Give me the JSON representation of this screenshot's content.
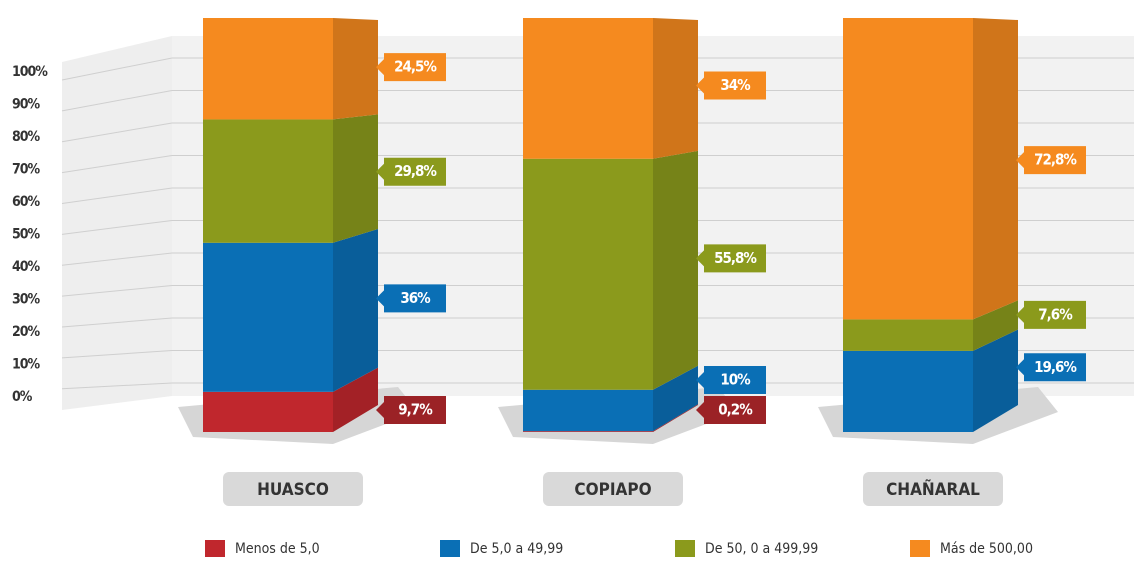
{
  "chart_data": {
    "type": "stacked-bar-3d",
    "categories": [
      "HUASCO",
      "COPIAPO",
      "CHAÑARAL"
    ],
    "series": [
      {
        "name": "Menos de 5,0",
        "color": "#c0272d",
        "values": [
          9.7,
          0.2,
          0
        ],
        "value_labels": [
          "9,7%",
          "0,2%",
          null
        ]
      },
      {
        "name": "De 5,0 a 49,99",
        "color": "#0a6fb5",
        "values": [
          36,
          10,
          19.6
        ],
        "value_labels": [
          "36%",
          "10%",
          "19,6%"
        ]
      },
      {
        "name": "De 50, 0 a 499,99",
        "color": "#8b9a1c",
        "values": [
          29.8,
          55.8,
          7.6
        ],
        "value_labels": [
          "29,8%",
          "55,8%",
          "7,6%"
        ]
      },
      {
        "name": "Más de 500,00",
        "color": "#f58a1f",
        "values": [
          24.5,
          34,
          72.8
        ],
        "value_labels": [
          "24,5%",
          "34%",
          "72,8%"
        ]
      }
    ],
    "ylim": [
      0,
      100
    ],
    "yticks": [
      {
        "value": 0,
        "label": "0%"
      },
      {
        "value": 10,
        "label": "10%"
      },
      {
        "value": 20,
        "label": "20%"
      },
      {
        "value": 30,
        "label": "30%"
      },
      {
        "value": 40,
        "label": "40%"
      },
      {
        "value": 50,
        "label": "50%"
      },
      {
        "value": 60,
        "label": "60%"
      },
      {
        "value": 70,
        "label": "70%"
      },
      {
        "value": 80,
        "label": "80%"
      },
      {
        "value": 90,
        "label": "90%"
      },
      {
        "value": 100,
        "label": "100%"
      }
    ],
    "grid": true,
    "legend": "bottom"
  }
}
